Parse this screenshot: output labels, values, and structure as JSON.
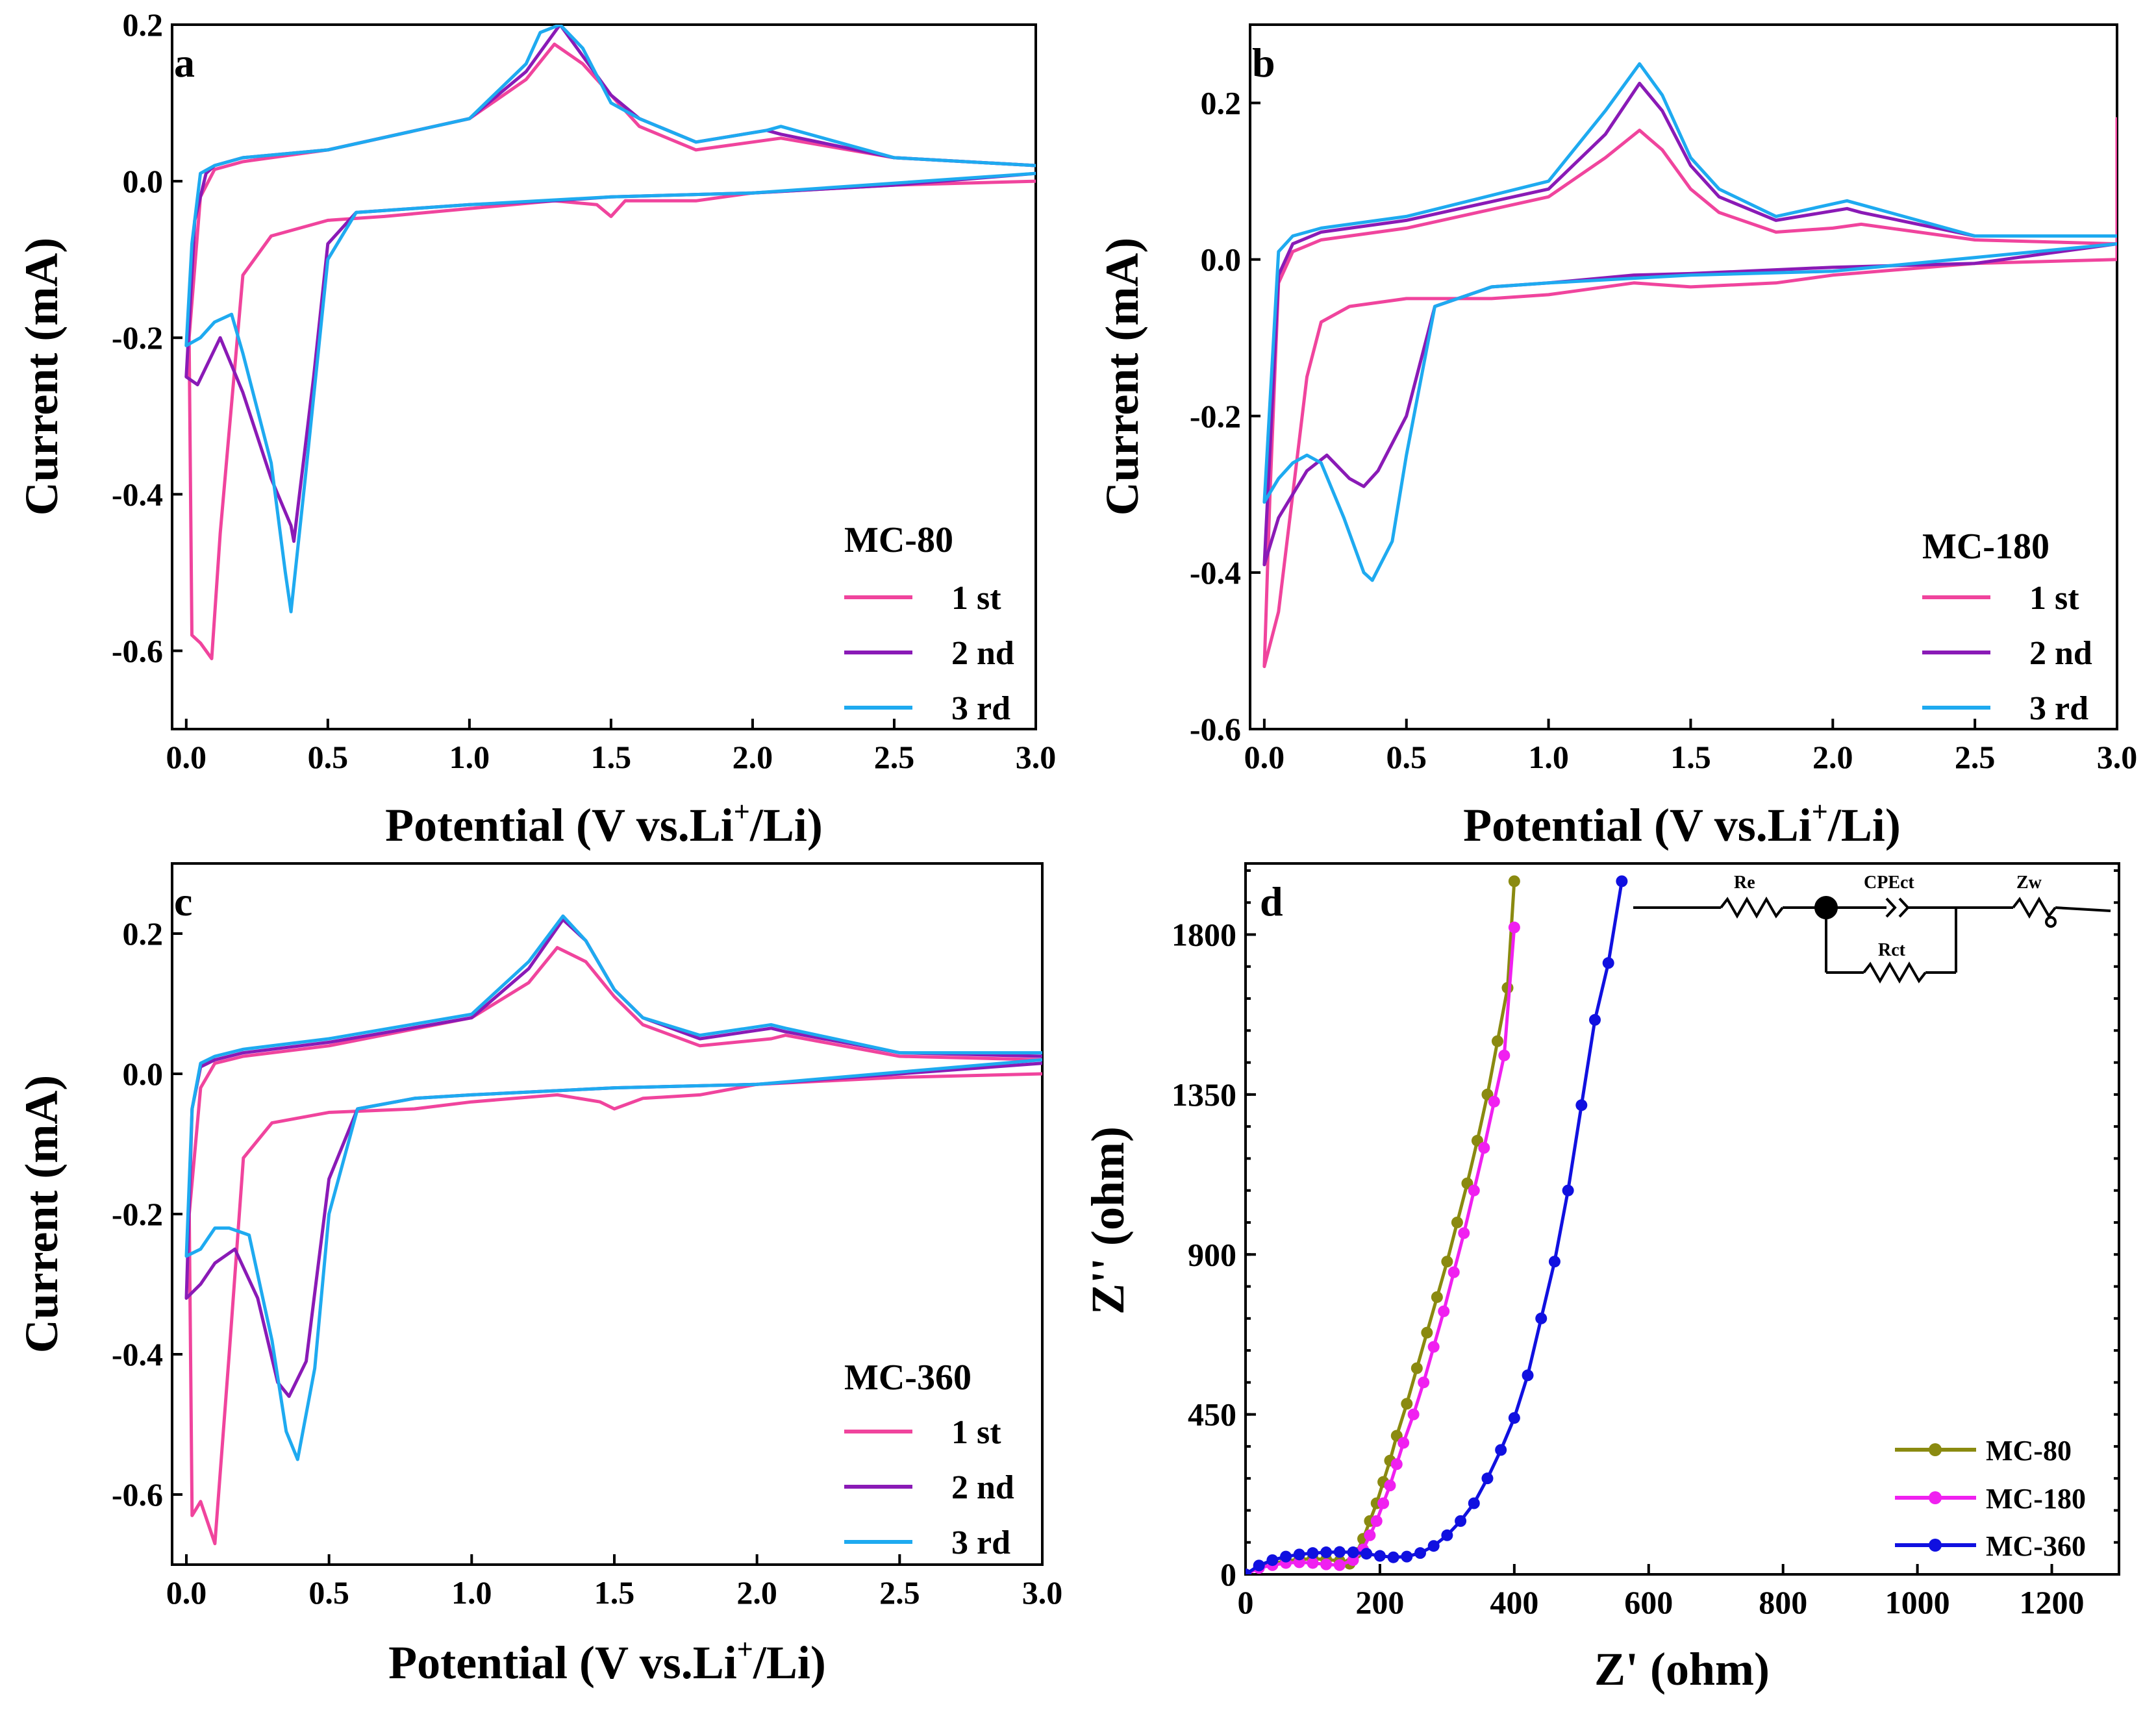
{
  "colors": {
    "cycle1": "#f0449d",
    "cycle2": "#8a1ab6",
    "cycle3": "#1eaaf0",
    "mc80": "#8a8a10",
    "mc180": "#f020f0",
    "mc360": "#1010e0"
  },
  "chart_data": [
    {
      "id": "a",
      "type": "line",
      "panel_label": "a",
      "xlabel": "Potential (V vs.Li⁺/Li)",
      "ylabel": "Current (mA)",
      "xlim": [
        -0.05,
        3.0
      ],
      "ylim": [
        -0.7,
        0.2
      ],
      "xticks": [
        "0.0",
        "0.5",
        "1.0",
        "1.5",
        "2.0",
        "2.5",
        "3.0"
      ],
      "yticks": [
        "0.2",
        "0.0",
        "-0.2",
        "-0.4",
        "-0.6"
      ],
      "legend_title": "MC-80",
      "series": [
        {
          "name": "1 st",
          "color_key": "cycle1",
          "x": [
            3.0,
            2.5,
            2.1,
            2.0,
            1.8,
            1.6,
            1.5,
            1.4,
            1.3,
            1.2,
            1.0,
            0.5,
            0.2,
            0.1,
            0.05,
            0.01,
            0.02,
            0.05,
            0.09,
            0.12,
            0.2,
            0.3,
            0.5,
            0.7,
            1.0,
            1.3,
            1.45,
            1.5,
            1.55,
            1.8,
            2.0,
            2.5,
            3.0
          ],
          "y": [
            0.02,
            0.03,
            0.055,
            0.05,
            0.04,
            0.07,
            0.11,
            0.15,
            0.175,
            0.13,
            0.08,
            0.04,
            0.025,
            0.015,
            -0.02,
            -0.2,
            -0.58,
            -0.59,
            -0.61,
            -0.45,
            -0.12,
            -0.07,
            -0.05,
            -0.045,
            -0.035,
            -0.025,
            -0.03,
            -0.045,
            -0.025,
            -0.025,
            -0.015,
            -0.005,
            0.0
          ]
        },
        {
          "name": "2 nd",
          "color_key": "cycle2",
          "x": [
            3.0,
            2.5,
            2.1,
            2.05,
            1.8,
            1.6,
            1.5,
            1.4,
            1.32,
            1.2,
            1.0,
            0.5,
            0.2,
            0.1,
            0.07,
            0.03,
            0.0,
            0.04,
            0.12,
            0.2,
            0.3,
            0.37,
            0.38,
            0.45,
            0.5,
            0.6,
            0.8,
            1.0,
            1.3,
            1.5,
            2.0,
            2.5,
            3.0
          ],
          "y": [
            0.02,
            0.03,
            0.06,
            0.065,
            0.05,
            0.08,
            0.11,
            0.16,
            0.2,
            0.14,
            0.08,
            0.04,
            0.03,
            0.02,
            0.01,
            -0.05,
            -0.25,
            -0.26,
            -0.2,
            -0.27,
            -0.38,
            -0.44,
            -0.46,
            -0.25,
            -0.08,
            -0.04,
            -0.035,
            -0.03,
            -0.025,
            -0.02,
            -0.015,
            -0.005,
            0.01
          ]
        },
        {
          "name": "3 rd",
          "color_key": "cycle3",
          "x": [
            3.0,
            2.5,
            2.1,
            2.05,
            1.8,
            1.6,
            1.5,
            1.4,
            1.32,
            1.25,
            1.2,
            1.0,
            0.5,
            0.2,
            0.1,
            0.05,
            0.02,
            0.0,
            0.05,
            0.1,
            0.16,
            0.2,
            0.3,
            0.35,
            0.37,
            0.42,
            0.5,
            0.6,
            0.8,
            1.0,
            1.5,
            2.0,
            3.0
          ],
          "y": [
            0.02,
            0.03,
            0.07,
            0.065,
            0.05,
            0.08,
            0.1,
            0.17,
            0.2,
            0.19,
            0.15,
            0.08,
            0.04,
            0.03,
            0.02,
            0.01,
            -0.08,
            -0.21,
            -0.2,
            -0.18,
            -0.17,
            -0.22,
            -0.36,
            -0.5,
            -0.55,
            -0.38,
            -0.1,
            -0.04,
            -0.035,
            -0.03,
            -0.02,
            -0.015,
            0.01
          ]
        }
      ]
    },
    {
      "id": "b",
      "type": "line",
      "panel_label": "b",
      "xlabel": "Potential (V vs.Li⁺/Li)",
      "ylabel": "Current (mA)",
      "xlim": [
        -0.05,
        3.0
      ],
      "ylim": [
        -0.6,
        0.3
      ],
      "xticks": [
        "0.0",
        "0.5",
        "1.0",
        "1.5",
        "2.0",
        "2.5",
        "3.0"
      ],
      "yticks": [
        "0.2",
        "0.0",
        "-0.2",
        "-0.4",
        "-0.6"
      ],
      "legend_title": "MC-180",
      "series": [
        {
          "name": "1 st",
          "color_key": "cycle1",
          "x": [
            3.0,
            2.5,
            2.1,
            2.0,
            1.8,
            1.6,
            1.5,
            1.4,
            1.32,
            1.2,
            1.0,
            0.5,
            0.2,
            0.1,
            0.05,
            0.02,
            0.0,
            0.05,
            0.1,
            0.15,
            0.2,
            0.3,
            0.5,
            0.8,
            1.0,
            1.3,
            1.5,
            1.8,
            2.0,
            2.5,
            3.0,
            3.0
          ],
          "y": [
            0.02,
            0.025,
            0.045,
            0.04,
            0.035,
            0.06,
            0.09,
            0.14,
            0.165,
            0.13,
            0.08,
            0.04,
            0.025,
            0.01,
            -0.03,
            -0.3,
            -0.52,
            -0.45,
            -0.3,
            -0.15,
            -0.08,
            -0.06,
            -0.05,
            -0.05,
            -0.045,
            -0.03,
            -0.035,
            -0.03,
            -0.02,
            -0.005,
            0.0,
            0.18
          ]
        },
        {
          "name": "2 nd",
          "color_key": "cycle2",
          "x": [
            3.0,
            2.5,
            2.1,
            2.05,
            1.8,
            1.6,
            1.5,
            1.4,
            1.32,
            1.2,
            1.0,
            0.5,
            0.2,
            0.1,
            0.05,
            0.0,
            0.05,
            0.1,
            0.15,
            0.22,
            0.3,
            0.35,
            0.4,
            0.5,
            0.6,
            0.8,
            1.0,
            1.3,
            1.5,
            2.0,
            2.5,
            3.0
          ],
          "y": [
            0.03,
            0.03,
            0.06,
            0.065,
            0.05,
            0.08,
            0.12,
            0.19,
            0.225,
            0.16,
            0.09,
            0.05,
            0.035,
            0.02,
            -0.02,
            -0.39,
            -0.33,
            -0.3,
            -0.27,
            -0.25,
            -0.28,
            -0.29,
            -0.27,
            -0.2,
            -0.06,
            -0.035,
            -0.03,
            -0.02,
            -0.018,
            -0.01,
            -0.005,
            0.02
          ]
        },
        {
          "name": "3 rd",
          "color_key": "cycle3",
          "x": [
            3.0,
            2.5,
            2.1,
            2.05,
            1.8,
            1.6,
            1.5,
            1.4,
            1.32,
            1.2,
            1.0,
            0.5,
            0.2,
            0.1,
            0.05,
            0.0,
            0.05,
            0.1,
            0.15,
            0.2,
            0.28,
            0.35,
            0.38,
            0.45,
            0.5,
            0.6,
            0.8,
            1.0,
            1.5,
            2.0,
            3.0
          ],
          "y": [
            0.03,
            0.03,
            0.07,
            0.075,
            0.055,
            0.09,
            0.13,
            0.21,
            0.25,
            0.19,
            0.1,
            0.055,
            0.04,
            0.03,
            0.01,
            -0.31,
            -0.28,
            -0.26,
            -0.25,
            -0.26,
            -0.33,
            -0.4,
            -0.41,
            -0.36,
            -0.25,
            -0.06,
            -0.035,
            -0.03,
            -0.02,
            -0.015,
            0.02
          ]
        }
      ]
    },
    {
      "id": "c",
      "type": "line",
      "panel_label": "c",
      "xlabel": "Potential (V vs.Li⁺/Li)",
      "ylabel": "Current (mA)",
      "xlim": [
        -0.05,
        3.0
      ],
      "ylim": [
        -0.7,
        0.3
      ],
      "xticks": [
        "0.0",
        "0.5",
        "1.0",
        "1.5",
        "2.0",
        "2.5",
        "3.0"
      ],
      "yticks": [
        "0.2",
        "0.0",
        "-0.2",
        "-0.4",
        "-0.6"
      ],
      "legend_title": "MC-360",
      "series": [
        {
          "name": "1 st",
          "color_key": "cycle1",
          "x": [
            3.0,
            2.5,
            2.1,
            2.05,
            1.8,
            1.6,
            1.5,
            1.4,
            1.3,
            1.2,
            1.0,
            0.5,
            0.2,
            0.1,
            0.05,
            0.01,
            0.02,
            0.05,
            0.1,
            0.15,
            0.2,
            0.3,
            0.5,
            0.8,
            1.0,
            1.3,
            1.45,
            1.5,
            1.6,
            1.8,
            2.0,
            2.5,
            3.0
          ],
          "y": [
            0.02,
            0.025,
            0.055,
            0.05,
            0.04,
            0.07,
            0.11,
            0.16,
            0.18,
            0.13,
            0.08,
            0.04,
            0.025,
            0.015,
            -0.02,
            -0.2,
            -0.63,
            -0.61,
            -0.67,
            -0.4,
            -0.12,
            -0.07,
            -0.055,
            -0.05,
            -0.04,
            -0.03,
            -0.04,
            -0.05,
            -0.035,
            -0.03,
            -0.015,
            -0.005,
            0.0
          ]
        },
        {
          "name": "2 nd",
          "color_key": "cycle2",
          "x": [
            3.0,
            2.5,
            2.1,
            2.05,
            1.8,
            1.6,
            1.5,
            1.4,
            1.32,
            1.2,
            1.0,
            0.5,
            0.2,
            0.1,
            0.05,
            0.02,
            0.0,
            0.05,
            0.1,
            0.17,
            0.25,
            0.32,
            0.36,
            0.42,
            0.5,
            0.6,
            0.8,
            1.0,
            1.5,
            2.0,
            3.0
          ],
          "y": [
            0.025,
            0.03,
            0.06,
            0.065,
            0.05,
            0.08,
            0.12,
            0.19,
            0.22,
            0.15,
            0.08,
            0.045,
            0.03,
            0.02,
            0.01,
            -0.05,
            -0.32,
            -0.3,
            -0.27,
            -0.25,
            -0.32,
            -0.44,
            -0.46,
            -0.41,
            -0.15,
            -0.05,
            -0.035,
            -0.03,
            -0.02,
            -0.015,
            0.015
          ]
        },
        {
          "name": "3 rd",
          "color_key": "cycle3",
          "x": [
            3.0,
            2.5,
            2.1,
            2.05,
            1.8,
            1.6,
            1.5,
            1.4,
            1.32,
            1.2,
            1.0,
            0.5,
            0.2,
            0.1,
            0.05,
            0.02,
            0.0,
            0.05,
            0.1,
            0.15,
            0.22,
            0.3,
            0.35,
            0.39,
            0.45,
            0.5,
            0.6,
            0.8,
            1.0,
            1.5,
            2.0,
            3.0
          ],
          "y": [
            0.03,
            0.03,
            0.065,
            0.07,
            0.055,
            0.08,
            0.12,
            0.19,
            0.225,
            0.16,
            0.085,
            0.05,
            0.035,
            0.025,
            0.015,
            -0.05,
            -0.26,
            -0.25,
            -0.22,
            -0.22,
            -0.23,
            -0.38,
            -0.51,
            -0.55,
            -0.42,
            -0.2,
            -0.05,
            -0.035,
            -0.03,
            -0.02,
            -0.015,
            0.02
          ]
        }
      ]
    },
    {
      "id": "d",
      "type": "scatter",
      "panel_label": "d",
      "xlabel": "Z' (ohm)",
      "ylabel": "Z'' (ohm)",
      "xlim": [
        0,
        1300
      ],
      "ylim": [
        0,
        2000
      ],
      "xticks": [
        "0",
        "200",
        "400",
        "600",
        "800",
        "1000",
        "1200"
      ],
      "yticks": [
        "1800",
        "1350",
        "900",
        "450",
        "0"
      ],
      "circuit": {
        "re": "Re",
        "cpe": "CPEct",
        "zw": "Zw",
        "rct": "Rct"
      },
      "series": [
        {
          "name": "MC-80",
          "color_key": "mc80",
          "x": [
            0,
            20,
            40,
            60,
            80,
            100,
            120,
            140,
            155,
            165,
            175,
            185,
            195,
            205,
            215,
            225,
            240,
            255,
            270,
            285,
            300,
            315,
            330,
            345,
            360,
            375,
            390,
            400
          ],
          "y": [
            0,
            20,
            30,
            38,
            42,
            44,
            42,
            38,
            30,
            60,
            100,
            150,
            200,
            260,
            320,
            390,
            480,
            580,
            680,
            780,
            880,
            990,
            1100,
            1220,
            1350,
            1500,
            1650,
            1950
          ]
        },
        {
          "name": "MC-180",
          "color_key": "mc180",
          "x": [
            0,
            20,
            40,
            60,
            80,
            100,
            120,
            140,
            160,
            175,
            185,
            195,
            205,
            215,
            225,
            235,
            250,
            265,
            280,
            295,
            310,
            325,
            340,
            355,
            370,
            385,
            400
          ],
          "y": [
            0,
            18,
            26,
            32,
            34,
            32,
            28,
            26,
            40,
            70,
            110,
            150,
            200,
            250,
            310,
            370,
            450,
            540,
            640,
            740,
            850,
            960,
            1080,
            1200,
            1330,
            1460,
            1820
          ]
        },
        {
          "name": "MC-360",
          "color_key": "mc360",
          "x": [
            0,
            20,
            40,
            60,
            80,
            100,
            120,
            140,
            160,
            180,
            200,
            220,
            240,
            260,
            280,
            300,
            320,
            340,
            360,
            380,
            400,
            420,
            440,
            460,
            480,
            500,
            520,
            540,
            560
          ],
          "y": [
            0,
            25,
            40,
            50,
            56,
            60,
            62,
            63,
            62,
            58,
            52,
            48,
            50,
            60,
            80,
            110,
            150,
            200,
            270,
            350,
            440,
            560,
            720,
            880,
            1080,
            1320,
            1560,
            1720,
            1950
          ]
        }
      ]
    }
  ]
}
